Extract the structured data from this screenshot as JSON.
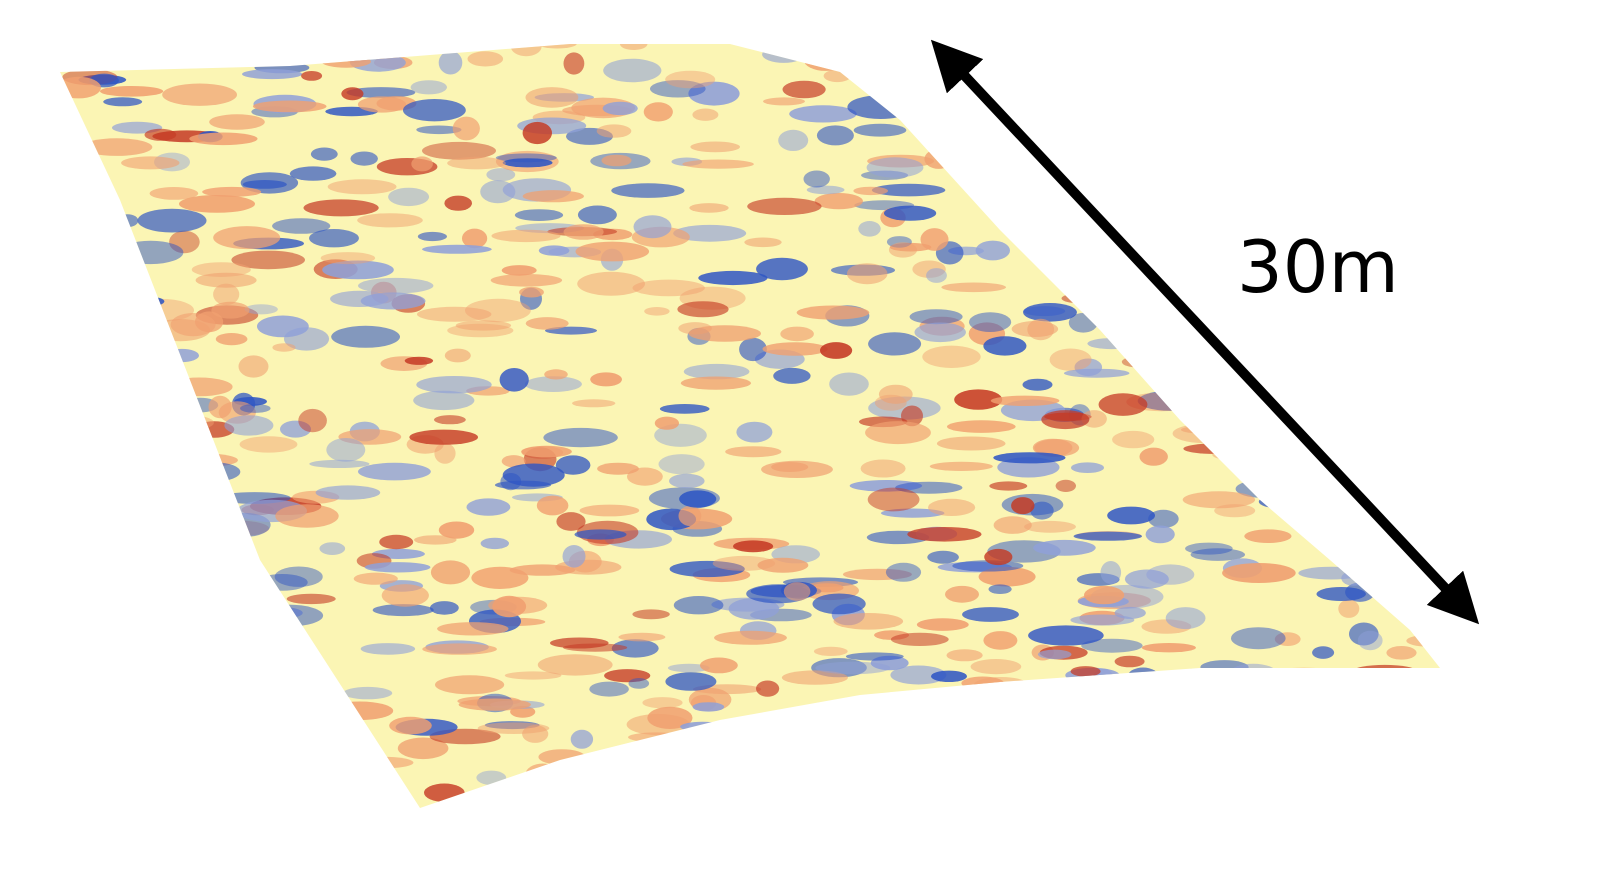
{
  "figure": {
    "scale_label": "30m",
    "surface": {
      "type": "terrain-heightmap",
      "colormap": [
        "#2f56c4",
        "#8fa0d8",
        "#fbf5b4",
        "#f0a070",
        "#c53a25"
      ],
      "background": "#ffffff"
    },
    "scale_arrow": {
      "color": "#000000",
      "style": "double-headed"
    }
  }
}
